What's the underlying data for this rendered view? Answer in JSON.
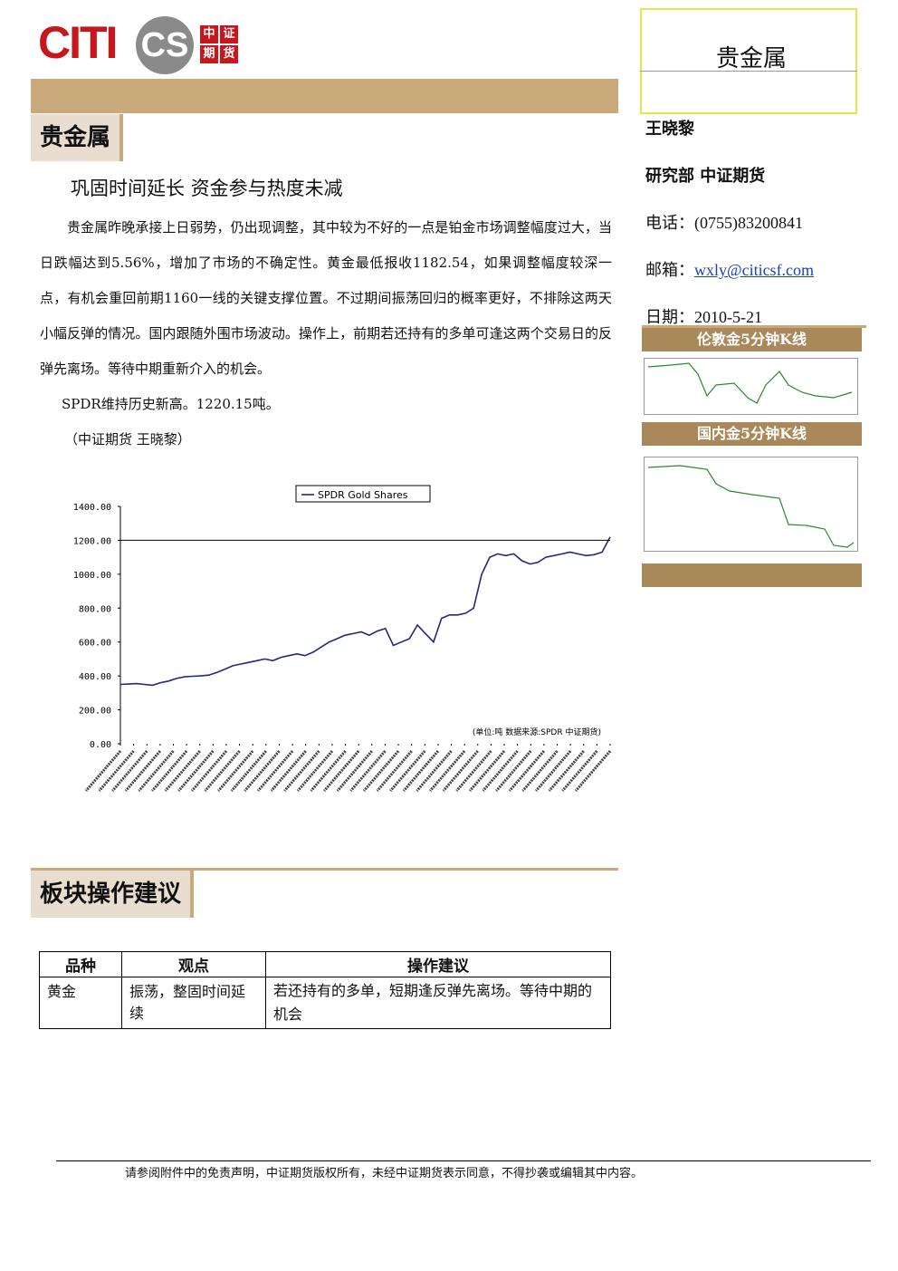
{
  "header": {
    "logo": "CITI",
    "logo_mark": "CS",
    "logo_chars": [
      "中",
      "证",
      "期",
      "货"
    ]
  },
  "section1": {
    "title": "贵金属"
  },
  "article": {
    "title": "巩固时间延长  资金参与热度未减",
    "paragraphs": [
      "贵金属昨晚承接上日弱势，仍出现调整，其中较为不好的一点是铂金市场调整幅度过大，当日跌幅达到5.56%，增加了市场的不确定性。黄金最低报收1182.54，如果调整幅度较深一点，有机会重回前期1160一线的关键支撑位置。不过期间振荡回归的概率更好，不排除这两天小幅反弹的情况。国内跟随外围市场波动。操作上，前期若还持有的多单可逢这两个交易日的反弹先离场。等待中期重新介入的机会。",
      "SPDR维持历史新高。1220.15吨。",
      "（中证期货  王晓黎）"
    ]
  },
  "chart_data": {
    "type": "line",
    "note": "(单位:吨  数据来源:SPDR  中证期货)",
    "series": [
      {
        "name": "SPDR Gold Shares",
        "color": "#1f2a7a",
        "values": [
          350,
          352,
          355,
          350,
          345,
          360,
          370,
          385,
          395,
          398,
          400,
          405,
          420,
          440,
          460,
          470,
          480,
          490,
          500,
          490,
          510,
          520,
          530,
          520,
          540,
          570,
          600,
          620,
          640,
          650,
          660,
          640,
          665,
          680,
          580,
          600,
          620,
          700,
          650,
          600,
          740,
          760,
          760,
          770,
          800,
          1000,
          1100,
          1120,
          1110,
          1120,
          1080,
          1060,
          1070,
          1100,
          1110,
          1120,
          1130,
          1120,
          1110,
          1115,
          1130,
          1220
        ]
      }
    ],
    "ylim": [
      0,
      1400
    ],
    "yticks": [
      {
        "value": 0,
        "label": "0.00"
      },
      {
        "value": 200,
        "label": "200.00"
      },
      {
        "value": 400,
        "label": "400.00"
      },
      {
        "value": 600,
        "label": "600.00"
      },
      {
        "value": 800,
        "label": "800.00"
      },
      {
        "value": 1000,
        "label": "1000.00"
      },
      {
        "value": 1200,
        "label": "1200.00"
      },
      {
        "value": 1400,
        "label": "1400.00"
      }
    ]
  },
  "section2": {
    "title": "板块操作建议"
  },
  "table": {
    "header": [
      "品种",
      "观点",
      "操作建议"
    ],
    "rows": [
      [
        "黄金",
        "振荡，整固时间延续",
        "若还持有的多单，短期逢反弹先离场。等待中期的机会"
      ]
    ]
  },
  "sidebar": {
    "title": "贵金属",
    "author": "王晓黎",
    "dept": "研究部  中证期货",
    "phone_label": "电话：",
    "phone": "(0755)83200841",
    "email_label": "邮箱：",
    "email": "wxly@citicsf.com",
    "date_label": "日期：",
    "date": "2010-5-21",
    "chart1": "伦敦金5分钟K线",
    "chart2": "国内金5分钟K线"
  },
  "footer": "请参阅附件中的免责声明，中证期货版权所有，未经中证期货表示同意，不得抄袭或编辑其中内容。"
}
